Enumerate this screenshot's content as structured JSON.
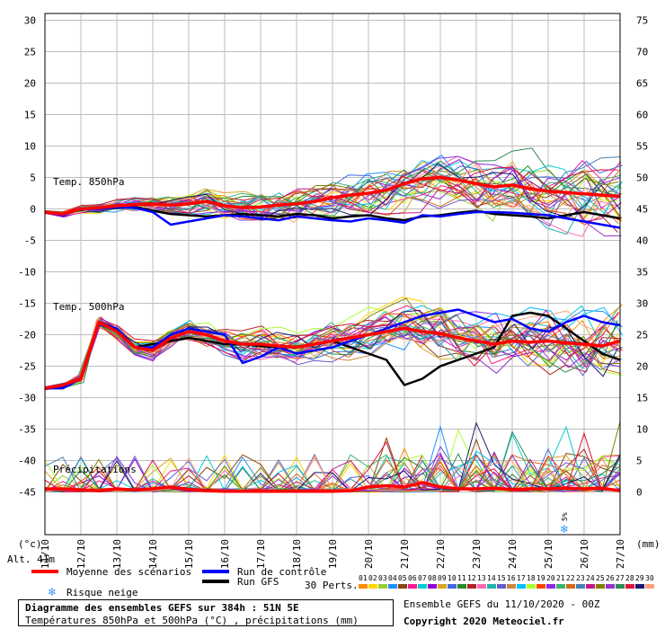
{
  "labels": {
    "unit_left": "(°c)",
    "unit_right": "(mm)",
    "alt": "Alt. 41m",
    "temp850": "Temp. 850hPa",
    "temp500": "Temp. 500hPa",
    "precip": "Précipitations",
    "snow_pct": "5%"
  },
  "legend": {
    "mean": "Moyenne des scénarios",
    "control": "Run de contrôle",
    "gfs": "Run GFS",
    "snow": "Risque neige",
    "perts_label": "30 Perts.",
    "perts": [
      "01",
      "02",
      "03",
      "04",
      "05",
      "06",
      "07",
      "08",
      "09",
      "10",
      "11",
      "12",
      "13",
      "14",
      "15",
      "16",
      "17",
      "18",
      "19",
      "20",
      "21",
      "22",
      "23",
      "24",
      "25",
      "26",
      "27",
      "28",
      "29",
      "30"
    ],
    "colors": {
      "mean": "#ff0000",
      "control": "#0000ff",
      "gfs": "#000000",
      "snow": "#3399ff"
    }
  },
  "footer": {
    "title": "Diagramme des ensembles GEFS sur 384h : 51N 5E",
    "subtitle": "Températures 850hPa et 500hPa (°C) , précipitations (mm)",
    "ensemble": "Ensemble GEFS du 11/10/2020 - 00Z",
    "copyright": "Copyright 2020 Meteociel.fr"
  },
  "pert_colors": [
    "#ff8c00",
    "#ffd700",
    "#9acd32",
    "#1e90ff",
    "#8b4513",
    "#ff1493",
    "#00ced1",
    "#9400d3",
    "#daa520",
    "#4169e1",
    "#228b22",
    "#b22222",
    "#ff69b4",
    "#20b2aa",
    "#6a5acd",
    "#cd853f",
    "#00bfff",
    "#adff2f",
    "#ff4500",
    "#8a2be2",
    "#3cb371",
    "#d2691e",
    "#4682b4",
    "#c71585",
    "#808000",
    "#9932cc",
    "#2e8b57",
    "#dc143c",
    "#191970",
    "#ffa07a"
  ],
  "chart_data": {
    "type": "line",
    "x_ticks": [
      "11/10",
      "12/10",
      "13/10",
      "14/10",
      "15/10",
      "16/10",
      "17/10",
      "18/10",
      "19/10",
      "20/10",
      "21/10",
      "22/10",
      "23/10",
      "24/10",
      "25/10",
      "26/10",
      "27/10"
    ],
    "y_left_ticks": [
      30,
      25,
      20,
      15,
      10,
      5,
      0,
      -5,
      -10,
      -15,
      -20,
      -25,
      -30,
      -35,
      -40,
      -45
    ],
    "y_right_ticks": [
      75,
      70,
      65,
      60,
      55,
      50,
      45,
      40,
      35,
      30,
      25,
      20,
      15,
      10,
      5,
      0
    ],
    "ylim_left": [
      -45,
      30
    ],
    "ylim_right": [
      0,
      75
    ],
    "grid": true,
    "x": [
      0,
      0.5,
      1,
      1.5,
      2,
      2.5,
      3,
      3.5,
      4,
      4.5,
      5,
      5.5,
      6,
      6.5,
      7,
      7.5,
      8,
      8.5,
      9,
      9.5,
      10,
      10.5,
      11,
      11.5,
      12,
      12.5,
      13,
      13.5,
      14,
      14.5,
      15,
      15.5,
      16
    ],
    "series": [
      {
        "name": "Moyenne des scénarios",
        "group": "850hPa",
        "values": [
          -0.5,
          -0.8,
          0,
          0.2,
          0.5,
          0.7,
          0.8,
          0.6,
          0.8,
          1.2,
          0.5,
          0.2,
          0.3,
          0.6,
          0.8,
          1.2,
          1.8,
          2.2,
          2.5,
          3.0,
          4.0,
          4.8,
          5.0,
          4.6,
          4.0,
          3.5,
          3.8,
          3.2,
          2.8,
          2.6,
          2.4,
          2.2,
          2.0
        ]
      },
      {
        "name": "Run de contrôle",
        "group": "850hPa",
        "values": [
          -0.5,
          -1.0,
          0,
          0,
          0.3,
          0.2,
          -0.5,
          -2.5,
          -2.0,
          -1.5,
          -1.0,
          -1.2,
          -1.5,
          -1.8,
          -1.2,
          -1.5,
          -1.8,
          -2.0,
          -1.5,
          -1.8,
          -2.2,
          -1.0,
          -1.2,
          -0.8,
          -0.5,
          -0.5,
          -0.6,
          -0.8,
          -1.0,
          -1.5,
          -2.0,
          -2.5,
          -3.0
        ]
      },
      {
        "name": "Run GFS",
        "group": "850hPa",
        "values": [
          -0.5,
          -0.9,
          0,
          0.1,
          0.4,
          0.3,
          -0.3,
          -0.8,
          -1.0,
          -1.2,
          -1.0,
          -0.8,
          -1.0,
          -1.2,
          -0.8,
          -1.0,
          -1.5,
          -1.2,
          -1.0,
          -1.5,
          -1.8,
          -1.2,
          -1.0,
          -0.6,
          -0.3,
          -0.8,
          -1.0,
          -1.2,
          -1.5,
          -1.0,
          -0.5,
          -1.0,
          -1.5
        ]
      },
      {
        "name": "Moyenne des scénarios",
        "group": "500hPa",
        "values": [
          -28.5,
          -28,
          -27,
          -18,
          -19.5,
          -22,
          -22.5,
          -20.5,
          -19.5,
          -20,
          -21,
          -21.5,
          -21.5,
          -21.8,
          -22,
          -21.5,
          -21,
          -20.5,
          -20,
          -19.5,
          -19,
          -19.5,
          -19.8,
          -20.5,
          -21,
          -21.5,
          -21,
          -21.2,
          -21,
          -21.3,
          -21.5,
          -21.8,
          -21
        ]
      },
      {
        "name": "Run de contrôle",
        "group": "500hPa",
        "values": [
          -28.5,
          -28.5,
          -27,
          -18,
          -19,
          -22,
          -22,
          -20,
          -19,
          -19.5,
          -20,
          -24.5,
          -23.5,
          -22,
          -23,
          -22.5,
          -22,
          -21,
          -20,
          -19,
          -18,
          -17,
          -16.5,
          -16,
          -17,
          -18,
          -17.5,
          -19,
          -19.5,
          -18,
          -17,
          -18,
          -18.5
        ]
      },
      {
        "name": "Run GFS",
        "group": "500hPa",
        "values": [
          -28.5,
          -28.5,
          -27,
          -18,
          -19.5,
          -22,
          -21.5,
          -21,
          -20.5,
          -21,
          -21.5,
          -21.5,
          -21.8,
          -22,
          -22,
          -21.5,
          -21,
          -22,
          -23,
          -24,
          -28,
          -27,
          -25,
          -24,
          -23,
          -22,
          -17,
          -16.5,
          -17,
          -19,
          -21,
          -23,
          -24
        ]
      },
      {
        "name": "Moyenne des scénarios",
        "group": "precip_mm",
        "values": [
          0.5,
          0.5,
          0.3,
          0.2,
          0.5,
          0.3,
          0.5,
          0.8,
          0.4,
          0.2,
          0.1,
          0.1,
          0.1,
          0.1,
          0.1,
          0.1,
          0.1,
          0.2,
          0.8,
          1.0,
          0.8,
          1.5,
          0.8,
          0.5,
          0.5,
          0.6,
          0.4,
          0.5,
          0.5,
          0.6,
          0.5,
          0.6,
          0.2
        ]
      }
    ]
  }
}
